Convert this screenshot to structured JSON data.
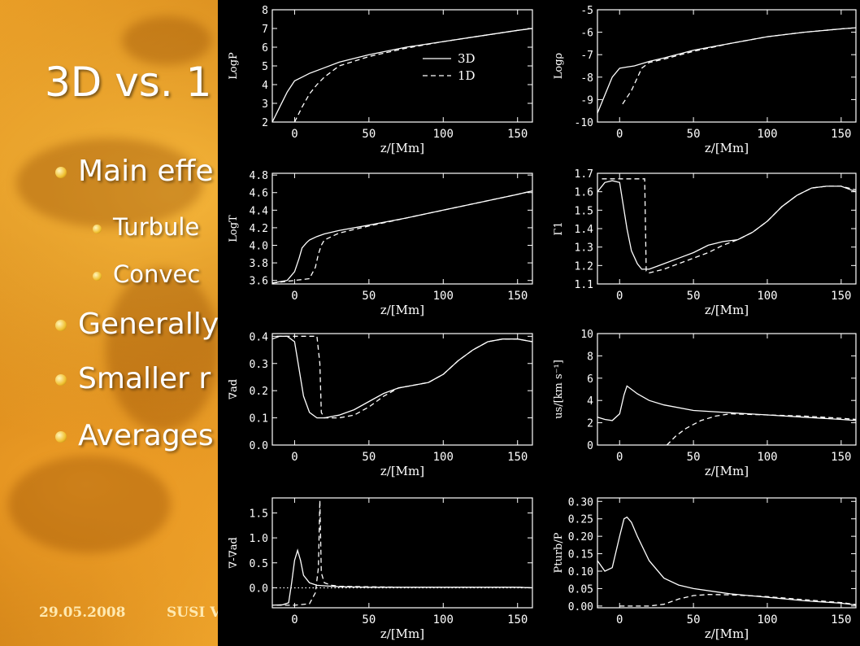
{
  "slide": {
    "title": "3D vs. 1",
    "bullets": [
      {
        "text": "Main effe",
        "level": 1
      },
      {
        "text": "Turbule",
        "level": 2
      },
      {
        "text": "Convec",
        "level": 2
      },
      {
        "text": "Generally",
        "level": 1
      },
      {
        "text": "Smaller r",
        "level": 1
      },
      {
        "text": "Averages",
        "level": 1
      }
    ],
    "footer_date": "29.05.2008",
    "footer_text": "SUSI V"
  },
  "colors": {
    "background": "#000000",
    "axes": "#ffffff",
    "slide_bg": "#d98c1a"
  },
  "chart_data": [
    {
      "type": "line",
      "ylabel": "LogP",
      "xlabel": "z/[Mm]",
      "xlim": [
        -15,
        160
      ],
      "ylim": [
        2,
        8
      ],
      "yticks": [
        2,
        3,
        4,
        5,
        6,
        7,
        8
      ],
      "xticks": [
        0,
        50,
        100,
        150
      ],
      "legend": [
        "3D",
        "1D"
      ],
      "legend_position": "top-right",
      "series": [
        {
          "name": "3D",
          "style": "solid",
          "x": [
            -15,
            -10,
            -5,
            0,
            5,
            10,
            20,
            30,
            50,
            75,
            100,
            125,
            150,
            160
          ],
          "y": [
            2.0,
            2.8,
            3.6,
            4.2,
            4.4,
            4.6,
            4.9,
            5.2,
            5.6,
            6.0,
            6.3,
            6.6,
            6.9,
            7.0
          ]
        },
        {
          "name": "1D",
          "style": "dashed",
          "x": [
            0,
            5,
            10,
            15,
            20,
            25,
            30,
            50,
            75,
            100,
            125,
            150,
            160
          ],
          "y": [
            2.0,
            2.8,
            3.5,
            4.0,
            4.4,
            4.7,
            5.0,
            5.5,
            5.95,
            6.3,
            6.6,
            6.9,
            7.0
          ]
        }
      ]
    },
    {
      "type": "line",
      "ylabel": "Logρ",
      "xlabel": "z/[Mm]",
      "xlim": [
        -15,
        160
      ],
      "ylim": [
        -10,
        -5
      ],
      "yticks": [
        -10,
        -9,
        -8,
        -7,
        -6,
        -5
      ],
      "xticks": [
        0,
        50,
        100,
        150
      ],
      "series": [
        {
          "name": "3D",
          "style": "solid",
          "x": [
            -15,
            -10,
            -5,
            0,
            5,
            10,
            20,
            30,
            50,
            75,
            100,
            125,
            150,
            160
          ],
          "y": [
            -9.6,
            -8.8,
            -8.0,
            -7.6,
            -7.55,
            -7.5,
            -7.3,
            -7.15,
            -6.8,
            -6.5,
            -6.2,
            -6.0,
            -5.85,
            -5.8
          ]
        },
        {
          "name": "1D",
          "style": "dashed",
          "x": [
            2,
            8,
            15,
            20,
            30,
            50,
            75,
            100,
            125,
            150,
            160
          ],
          "y": [
            -9.2,
            -8.6,
            -7.6,
            -7.35,
            -7.2,
            -6.85,
            -6.5,
            -6.2,
            -6.0,
            -5.85,
            -5.8
          ]
        }
      ]
    },
    {
      "type": "line",
      "ylabel": "LogT",
      "xlabel": "z/[Mm]",
      "xlim": [
        -15,
        160
      ],
      "ylim": [
        3.56,
        4.82
      ],
      "yticks": [
        3.6,
        3.8,
        4.0,
        4.2,
        4.4,
        4.6,
        4.8
      ],
      "xticks": [
        0,
        50,
        100,
        150
      ],
      "series": [
        {
          "name": "3D",
          "style": "solid",
          "x": [
            -15,
            -5,
            0,
            3,
            5,
            8,
            10,
            15,
            20,
            30,
            50,
            75,
            100,
            125,
            150,
            160
          ],
          "y": [
            3.57,
            3.6,
            3.7,
            3.85,
            3.97,
            4.03,
            4.06,
            4.1,
            4.13,
            4.17,
            4.23,
            4.31,
            4.4,
            4.49,
            4.58,
            4.62
          ]
        },
        {
          "name": "1D",
          "style": "dashed",
          "x": [
            -15,
            0,
            10,
            14,
            16,
            18,
            20,
            30,
            50,
            75,
            100,
            125,
            150,
            160
          ],
          "y": [
            3.57,
            3.6,
            3.62,
            3.75,
            3.9,
            4.0,
            4.06,
            4.14,
            4.22,
            4.31,
            4.4,
            4.49,
            4.58,
            4.62
          ]
        }
      ]
    },
    {
      "type": "line",
      "ylabel": "Γ1",
      "xlabel": "z/[Mm]",
      "xlim": [
        -15,
        160
      ],
      "ylim": [
        1.1,
        1.7
      ],
      "yticks": [
        1.1,
        1.2,
        1.3,
        1.4,
        1.5,
        1.6,
        1.7
      ],
      "xticks": [
        0,
        50,
        100,
        150
      ],
      "series": [
        {
          "name": "3D",
          "style": "solid",
          "x": [
            -15,
            -10,
            -5,
            0,
            2,
            5,
            8,
            12,
            15,
            20,
            30,
            40,
            50,
            60,
            70,
            80,
            90,
            100,
            110,
            120,
            130,
            140,
            150,
            160
          ],
          "y": [
            1.6,
            1.65,
            1.66,
            1.65,
            1.55,
            1.4,
            1.28,
            1.21,
            1.18,
            1.18,
            1.21,
            1.24,
            1.27,
            1.31,
            1.33,
            1.34,
            1.38,
            1.44,
            1.52,
            1.58,
            1.62,
            1.63,
            1.63,
            1.6
          ]
        },
        {
          "name": "1D",
          "style": "dashed",
          "x": [
            -12,
            -5,
            0,
            10,
            17,
            18,
            20,
            30,
            40,
            50,
            60,
            70,
            80,
            90,
            100,
            110,
            120,
            130,
            140,
            150,
            160
          ],
          "y": [
            1.67,
            1.67,
            1.67,
            1.67,
            1.67,
            1.17,
            1.16,
            1.18,
            1.21,
            1.24,
            1.27,
            1.31,
            1.34,
            1.38,
            1.44,
            1.52,
            1.58,
            1.62,
            1.63,
            1.63,
            1.61
          ]
        }
      ]
    },
    {
      "type": "line",
      "ylabel": "∇ad",
      "xlabel": "z/[Mm]",
      "xlim": [
        -15,
        160
      ],
      "ylim": [
        0,
        0.41
      ],
      "yticks": [
        0.0,
        0.1,
        0.2,
        0.3,
        0.4
      ],
      "xticks": [
        0,
        50,
        100,
        150
      ],
      "series": [
        {
          "name": "3D",
          "style": "solid",
          "x": [
            -15,
            -10,
            -5,
            0,
            3,
            6,
            10,
            15,
            20,
            30,
            40,
            50,
            60,
            70,
            80,
            90,
            100,
            110,
            120,
            130,
            140,
            150,
            160
          ],
          "y": [
            0.39,
            0.4,
            0.4,
            0.38,
            0.28,
            0.18,
            0.12,
            0.1,
            0.1,
            0.11,
            0.13,
            0.16,
            0.19,
            0.21,
            0.22,
            0.23,
            0.26,
            0.31,
            0.35,
            0.38,
            0.39,
            0.39,
            0.38
          ]
        },
        {
          "name": "1D",
          "style": "dashed",
          "x": [
            -12,
            0,
            10,
            15,
            17,
            18,
            20,
            30,
            40,
            50,
            60,
            70,
            80,
            90,
            100,
            110,
            120,
            130,
            140,
            150,
            160
          ],
          "y": [
            0.4,
            0.4,
            0.4,
            0.4,
            0.3,
            0.12,
            0.1,
            0.1,
            0.11,
            0.14,
            0.18,
            0.21,
            0.22,
            0.23,
            0.26,
            0.31,
            0.35,
            0.38,
            0.39,
            0.39,
            0.38
          ]
        }
      ]
    },
    {
      "type": "line",
      "ylabel": "us/[km s⁻¹]",
      "xlabel": "z/[Mm]",
      "xlim": [
        -15,
        160
      ],
      "ylim": [
        0,
        10
      ],
      "yticks": [
        0,
        2,
        4,
        6,
        8,
        10
      ],
      "xticks": [
        0,
        50,
        100,
        150
      ],
      "series": [
        {
          "name": "3D",
          "style": "solid",
          "x": [
            -15,
            -10,
            -5,
            0,
            3,
            5,
            8,
            12,
            20,
            30,
            50,
            75,
            100,
            125,
            150,
            160
          ],
          "y": [
            2.5,
            2.3,
            2.2,
            2.8,
            4.5,
            5.3,
            5.0,
            4.6,
            4.0,
            3.6,
            3.1,
            2.9,
            2.7,
            2.5,
            2.3,
            2.2
          ]
        },
        {
          "name": "1D",
          "style": "dashed",
          "x": [
            32,
            38,
            45,
            55,
            65,
            75,
            100,
            125,
            150,
            160
          ],
          "y": [
            0,
            0.8,
            1.5,
            2.2,
            2.6,
            2.8,
            2.7,
            2.6,
            2.4,
            2.3
          ]
        }
      ]
    },
    {
      "type": "line",
      "ylabel": "∇-∇ad",
      "xlabel": "z/[Mm]",
      "xlim": [
        -15,
        160
      ],
      "ylim": [
        -0.4,
        1.8
      ],
      "yticks": [
        0.0,
        0.5,
        1.0,
        1.5
      ],
      "xticks": [
        0,
        50,
        100,
        150
      ],
      "series": [
        {
          "name": "3D",
          "style": "solid",
          "x": [
            -15,
            -8,
            -4,
            -2,
            0,
            2,
            4,
            6,
            10,
            15,
            20,
            30,
            50,
            75,
            100,
            125,
            150,
            160
          ],
          "y": [
            -0.35,
            -0.34,
            -0.3,
            0.1,
            0.55,
            0.75,
            0.55,
            0.25,
            0.1,
            0.05,
            0.04,
            0.02,
            0.01,
            0.01,
            0.01,
            0.01,
            0.01,
            0.0
          ]
        },
        {
          "name": "1D",
          "style": "dashed",
          "x": [
            -12,
            0,
            10,
            14,
            16,
            17,
            18,
            20,
            25,
            30,
            50,
            75,
            100,
            125,
            150,
            160
          ],
          "y": [
            -0.35,
            -0.35,
            -0.32,
            -0.1,
            0.4,
            1.75,
            0.3,
            0.1,
            0.05,
            0.03,
            0.02,
            0.01,
            0.01,
            0.01,
            0.01,
            0.0
          ]
        },
        {
          "name": "zero",
          "style": "dotted",
          "x": [
            -15,
            160
          ],
          "y": [
            0,
            0
          ]
        }
      ]
    },
    {
      "type": "line",
      "ylabel": "Pturb/P",
      "xlabel": "z/[Mm]",
      "xlim": [
        -15,
        160
      ],
      "ylim": [
        -0.005,
        0.31
      ],
      "yticks": [
        0.0,
        0.05,
        0.1,
        0.15,
        0.2,
        0.25,
        0.3
      ],
      "xticks": [
        0,
        50,
        100,
        150
      ],
      "series": [
        {
          "name": "3D",
          "style": "solid",
          "x": [
            -15,
            -10,
            -5,
            0,
            3,
            5,
            8,
            12,
            20,
            30,
            40,
            50,
            75,
            100,
            125,
            150,
            160
          ],
          "y": [
            0.13,
            0.1,
            0.11,
            0.2,
            0.25,
            0.255,
            0.24,
            0.2,
            0.13,
            0.08,
            0.06,
            0.05,
            0.035,
            0.025,
            0.015,
            0.008,
            0.003
          ]
        },
        {
          "name": "1D",
          "style": "dashed",
          "x": [
            0,
            20,
            30,
            40,
            50,
            60,
            75,
            100,
            125,
            150,
            160
          ],
          "y": [
            0.0,
            0.0,
            0.005,
            0.02,
            0.03,
            0.033,
            0.032,
            0.027,
            0.018,
            0.01,
            0.004
          ]
        }
      ]
    }
  ]
}
